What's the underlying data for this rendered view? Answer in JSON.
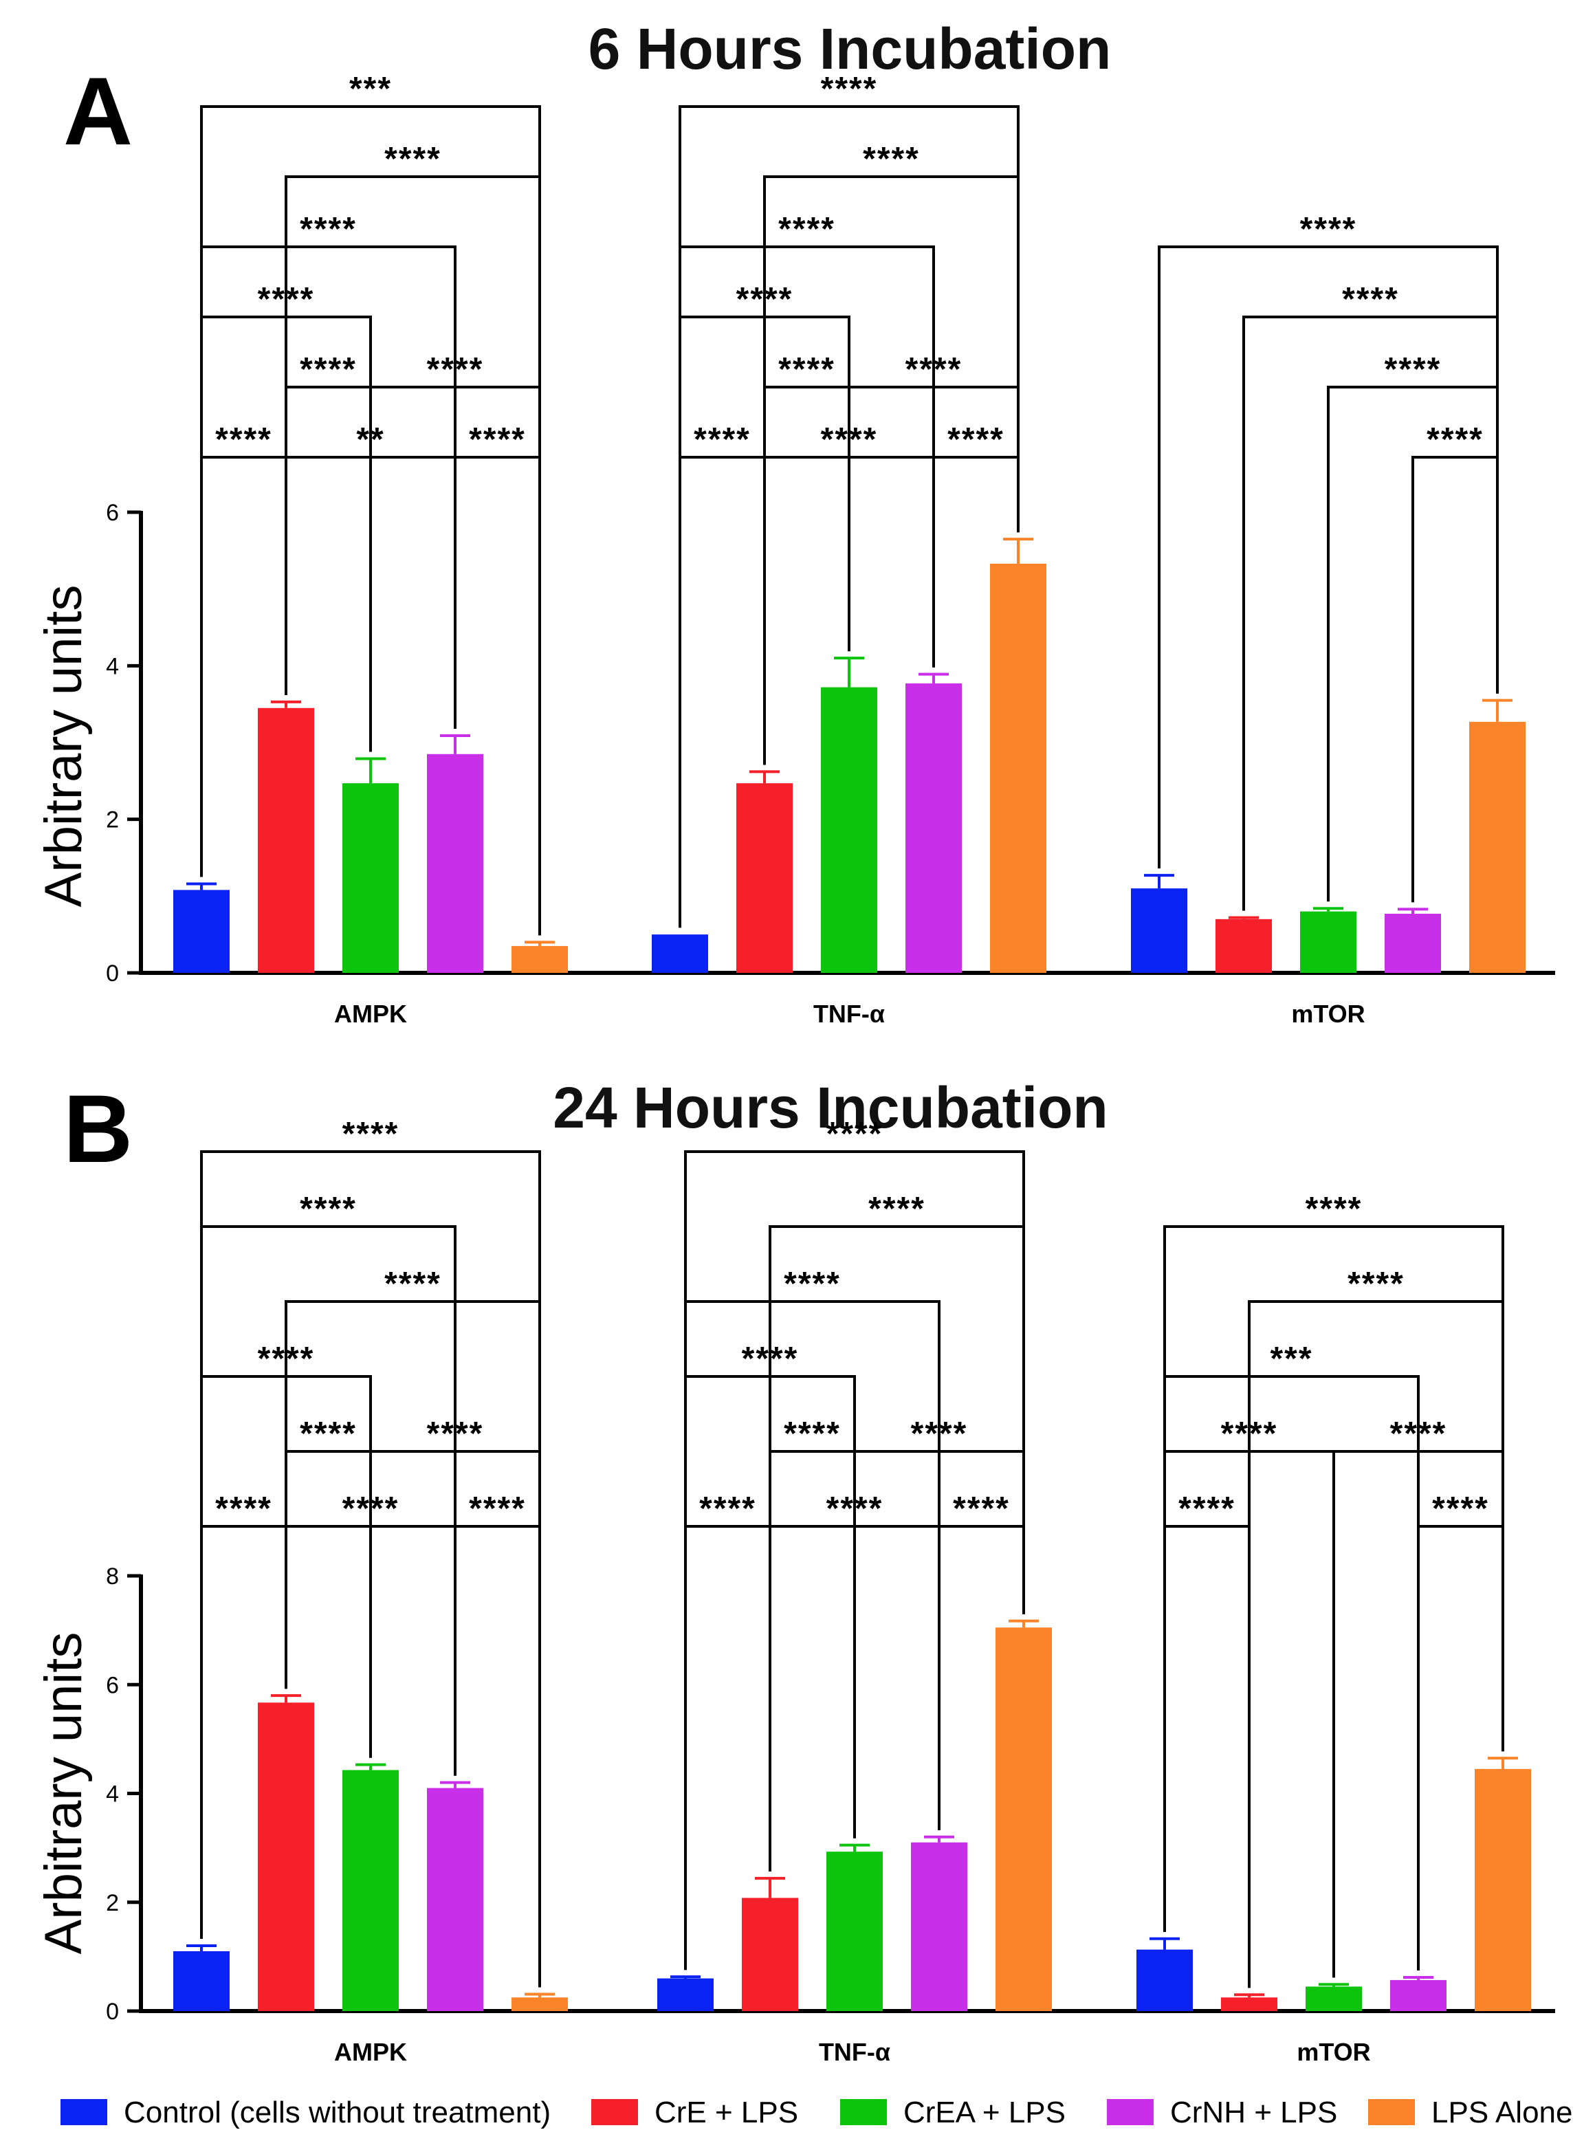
{
  "colors": {
    "Control (cells without treatment)": "#0a22f2",
    "CrE + LPS": "#f5202a",
    "CrEA + LPS": "#0bc40b",
    "CrNH + LPS": "#c92ee8",
    "LPS Alone": "#fb842a"
  },
  "legend": [
    "Control (cells without treatment)",
    "CrE + LPS",
    "CrEA + LPS",
    "CrNH + LPS",
    "LPS Alone"
  ],
  "chart_data": [
    {
      "panel": "A",
      "type": "bar",
      "title": "6 Hours Incubation",
      "ylabel": "Arbitrary units",
      "xlabel": "",
      "ylim": [
        0,
        6
      ],
      "yticks": [
        0,
        2,
        4,
        6
      ],
      "categories": [
        "AMPK",
        "TNF-α",
        "mTOR"
      ],
      "series": [
        {
          "name": "Control (cells without treatment)",
          "values": [
            1.08,
            0.5,
            1.1
          ],
          "errors": [
            0.08,
            0.0,
            0.17
          ]
        },
        {
          "name": "CrE + LPS",
          "values": [
            3.45,
            2.47,
            0.7
          ],
          "errors": [
            0.08,
            0.15,
            0.02
          ]
        },
        {
          "name": "CrEA + LPS",
          "values": [
            2.47,
            3.72,
            0.8
          ],
          "errors": [
            0.32,
            0.38,
            0.04
          ]
        },
        {
          "name": "CrNH + LPS",
          "values": [
            2.85,
            3.77,
            0.77
          ],
          "errors": [
            0.24,
            0.12,
            0.06
          ]
        },
        {
          "name": "LPS Alone",
          "values": [
            0.35,
            5.33,
            3.27
          ],
          "errors": [
            0.05,
            0.32,
            0.28
          ]
        }
      ],
      "comparisons": [
        {
          "cat": 0,
          "a": 0,
          "b": 1,
          "level": 0,
          "label": "****"
        },
        {
          "cat": 0,
          "a": 1,
          "b": 3,
          "level": 0,
          "label": "**"
        },
        {
          "cat": 0,
          "a": 3,
          "b": 4,
          "level": 0,
          "label": "****"
        },
        {
          "cat": 0,
          "a": 1,
          "b": 2,
          "level": 1,
          "label": "****"
        },
        {
          "cat": 0,
          "a": 2,
          "b": 4,
          "level": 1,
          "label": "****"
        },
        {
          "cat": 0,
          "a": 0,
          "b": 2,
          "level": 2,
          "label": "****"
        },
        {
          "cat": 0,
          "a": 0,
          "b": 3,
          "level": 3,
          "label": "****"
        },
        {
          "cat": 0,
          "a": 1,
          "b": 4,
          "level": 4,
          "label": "****"
        },
        {
          "cat": 0,
          "a": 0,
          "b": 4,
          "level": 5,
          "label": "***"
        },
        {
          "cat": 1,
          "a": 0,
          "b": 1,
          "level": 0,
          "label": "****"
        },
        {
          "cat": 1,
          "a": 1,
          "b": 3,
          "level": 0,
          "label": "****"
        },
        {
          "cat": 1,
          "a": 3,
          "b": 4,
          "level": 0,
          "label": "****"
        },
        {
          "cat": 1,
          "a": 1,
          "b": 2,
          "level": 1,
          "label": "****"
        },
        {
          "cat": 1,
          "a": 2,
          "b": 4,
          "level": 1,
          "label": "****"
        },
        {
          "cat": 1,
          "a": 0,
          "b": 2,
          "level": 2,
          "label": "****"
        },
        {
          "cat": 1,
          "a": 0,
          "b": 3,
          "level": 3,
          "label": "****"
        },
        {
          "cat": 1,
          "a": 1,
          "b": 4,
          "level": 4,
          "label": "****"
        },
        {
          "cat": 1,
          "a": 0,
          "b": 4,
          "level": 5,
          "label": "****"
        },
        {
          "cat": 2,
          "a": 3,
          "b": 4,
          "level": 0,
          "label": "****"
        },
        {
          "cat": 2,
          "a": 2,
          "b": 4,
          "level": 1,
          "label": "****"
        },
        {
          "cat": 2,
          "a": 1,
          "b": 4,
          "level": 2,
          "label": "****"
        },
        {
          "cat": 2,
          "a": 0,
          "b": 4,
          "level": 3,
          "label": "****"
        }
      ]
    },
    {
      "panel": "B",
      "type": "bar",
      "title": "24 Hours Incubation",
      "ylabel": "Arbitrary units",
      "xlabel": "",
      "ylim": [
        0,
        8
      ],
      "yticks": [
        0,
        2,
        4,
        6,
        8
      ],
      "categories": [
        "AMPK",
        "TNF-α",
        "mTOR"
      ],
      "series": [
        {
          "name": "Control (cells without treatment)",
          "values": [
            1.1,
            0.6,
            1.13
          ],
          "errors": [
            0.1,
            0.03,
            0.2
          ]
        },
        {
          "name": "CrE + LPS",
          "values": [
            5.67,
            2.08,
            0.25
          ],
          "errors": [
            0.13,
            0.36,
            0.05
          ]
        },
        {
          "name": "CrEA + LPS",
          "values": [
            4.43,
            2.93,
            0.45
          ],
          "errors": [
            0.1,
            0.12,
            0.04
          ]
        },
        {
          "name": "CrNH + LPS",
          "values": [
            4.1,
            3.1,
            0.57
          ],
          "errors": [
            0.1,
            0.1,
            0.05
          ]
        },
        {
          "name": "LPS Alone",
          "values": [
            0.25,
            7.05,
            4.45
          ],
          "errors": [
            0.06,
            0.12,
            0.2
          ]
        }
      ],
      "comparisons": [
        {
          "cat": 0,
          "a": 0,
          "b": 1,
          "level": 0,
          "label": "****"
        },
        {
          "cat": 0,
          "a": 1,
          "b": 3,
          "level": 0,
          "label": "****"
        },
        {
          "cat": 0,
          "a": 3,
          "b": 4,
          "level": 0,
          "label": "****"
        },
        {
          "cat": 0,
          "a": 1,
          "b": 2,
          "level": 1,
          "label": "****"
        },
        {
          "cat": 0,
          "a": 2,
          "b": 4,
          "level": 1,
          "label": "****"
        },
        {
          "cat": 0,
          "a": 0,
          "b": 2,
          "level": 2,
          "label": "****"
        },
        {
          "cat": 0,
          "a": 1,
          "b": 4,
          "level": 3,
          "label": "****"
        },
        {
          "cat": 0,
          "a": 0,
          "b": 3,
          "level": 4,
          "label": "****"
        },
        {
          "cat": 0,
          "a": 0,
          "b": 4,
          "level": 5,
          "label": "****"
        },
        {
          "cat": 1,
          "a": 0,
          "b": 1,
          "level": 0,
          "label": "****"
        },
        {
          "cat": 1,
          "a": 1,
          "b": 3,
          "level": 0,
          "label": "****"
        },
        {
          "cat": 1,
          "a": 3,
          "b": 4,
          "level": 0,
          "label": "****"
        },
        {
          "cat": 1,
          "a": 1,
          "b": 2,
          "level": 1,
          "label": "****"
        },
        {
          "cat": 1,
          "a": 2,
          "b": 4,
          "level": 1,
          "label": "****"
        },
        {
          "cat": 1,
          "a": 0,
          "b": 2,
          "level": 2,
          "label": "****"
        },
        {
          "cat": 1,
          "a": 0,
          "b": 3,
          "level": 3,
          "label": "****"
        },
        {
          "cat": 1,
          "a": 1,
          "b": 4,
          "level": 4,
          "label": "****"
        },
        {
          "cat": 1,
          "a": 0,
          "b": 4,
          "level": 5,
          "label": "****"
        },
        {
          "cat": 2,
          "a": 0,
          "b": 1,
          "level": 0,
          "label": "****"
        },
        {
          "cat": 2,
          "a": 3,
          "b": 4,
          "level": 0,
          "label": "****"
        },
        {
          "cat": 2,
          "a": 0,
          "b": 2,
          "level": 1,
          "label": "****"
        },
        {
          "cat": 2,
          "a": 2,
          "b": 4,
          "level": 1,
          "label": "****"
        },
        {
          "cat": 2,
          "a": 0,
          "b": 3,
          "level": 2,
          "label": "***"
        },
        {
          "cat": 2,
          "a": 1,
          "b": 4,
          "level": 3,
          "label": "****"
        },
        {
          "cat": 2,
          "a": 0,
          "b": 4,
          "level": 4,
          "label": "****"
        }
      ]
    }
  ]
}
